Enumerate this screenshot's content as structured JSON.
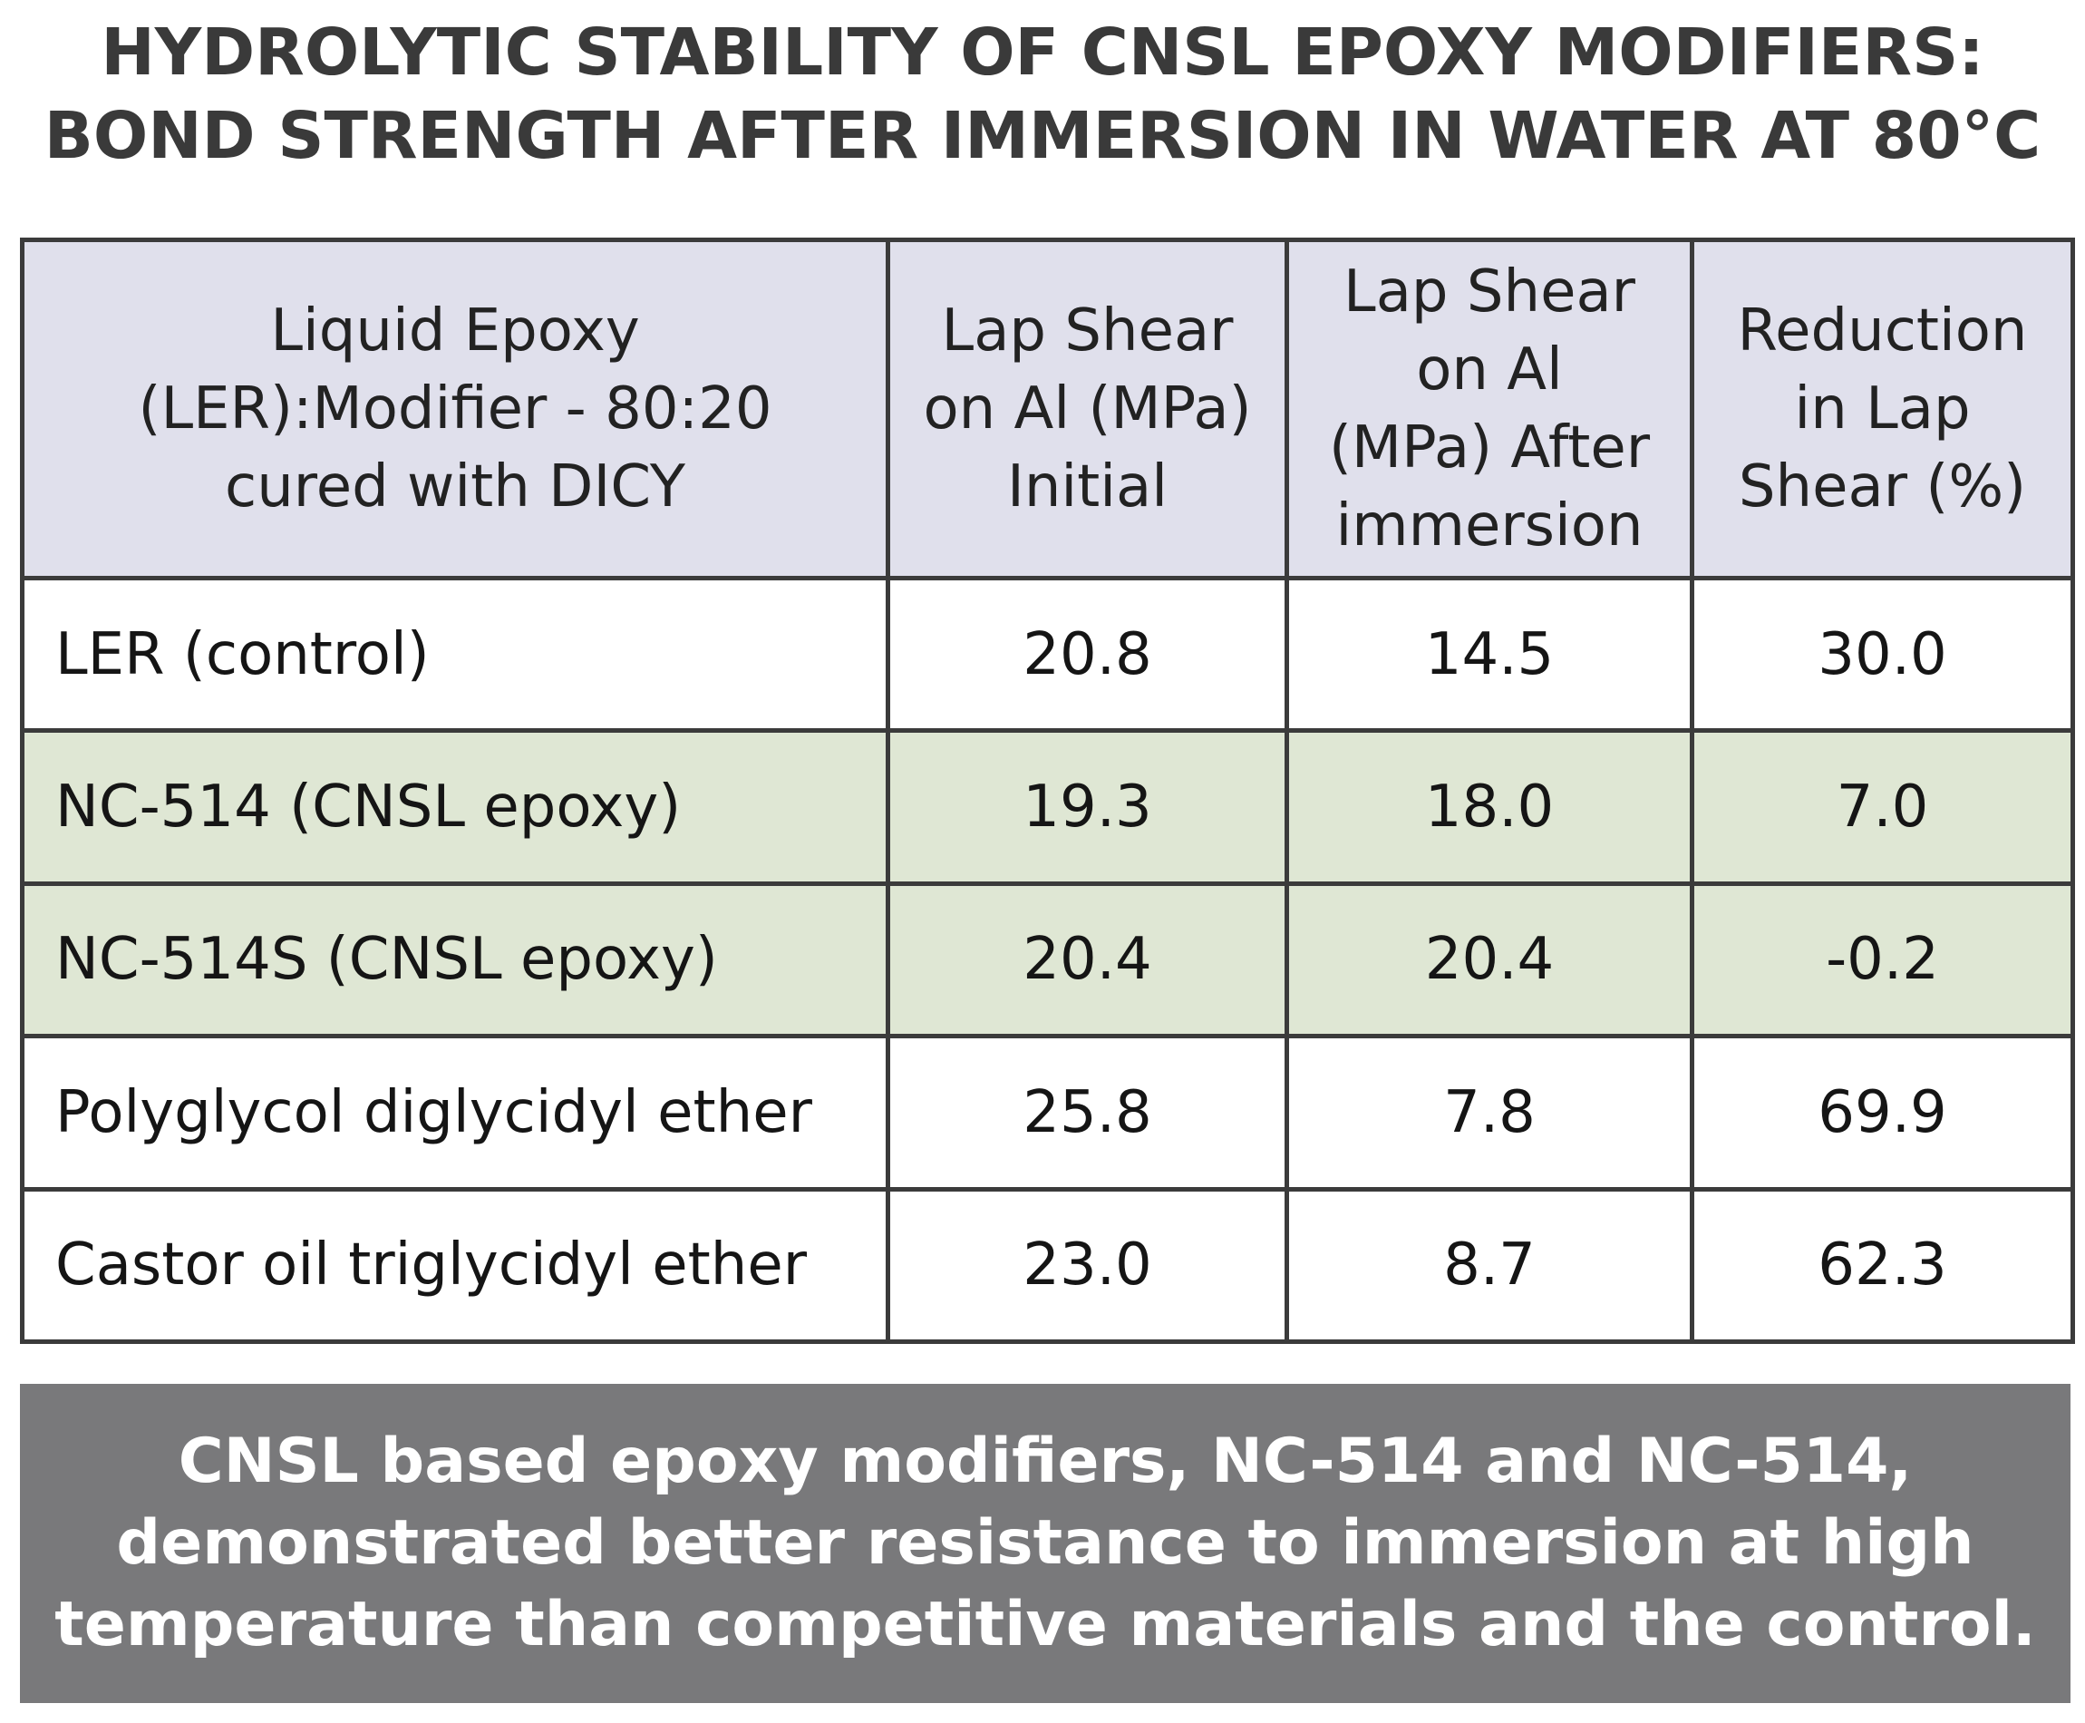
{
  "title": {
    "line1": "HYDROLYTIC STABILITY OF CNSL EPOXY MODIFIERS:",
    "line2": "BOND STRENGTH AFTER IMMERSION IN WATER AT 80°C"
  },
  "table": {
    "headers": [
      [
        "Liquid Epoxy",
        "(LER):Modifier - 80:20",
        "cured with DICY"
      ],
      [
        "Lap Shear",
        "on Al (MPa)",
        "Initial"
      ],
      [
        "Lap Shear",
        "on Al",
        "(MPa) After",
        "immersion"
      ],
      [
        "Reduction",
        "in Lap",
        "Shear (%)"
      ]
    ],
    "rows": [
      {
        "label": "LER (control)",
        "initial": "20.8",
        "after": "14.5",
        "reduction": "30.0"
      },
      {
        "label": "NC-514 (CNSL epoxy)",
        "initial": "19.3",
        "after": "18.0",
        "reduction": "7.0"
      },
      {
        "label": "NC-514S (CNSL epoxy)",
        "initial": "20.4",
        "after": "20.4",
        "reduction": "-0.2"
      },
      {
        "label": "Polyglycol diglycidyl ether",
        "initial": "25.8",
        "after": "7.8",
        "reduction": "69.9"
      },
      {
        "label": "Castor oil triglycidyl ether",
        "initial": "23.0",
        "after": "8.7",
        "reduction": "62.3"
      }
    ]
  },
  "footer": {
    "line1": "CNSL based epoxy modifiers, NC-514 and NC-514,",
    "line2": "demonstrated better resistance to immersion at high",
    "line3": "temperature than competitive materials and the control."
  },
  "colors": {
    "header_bg": "#e0e0ec",
    "highlight_row_bg": "#dfe7d4",
    "footer_bg": "#79797b",
    "border": "#3b3b3b",
    "title_text": "#3a3a3a"
  }
}
